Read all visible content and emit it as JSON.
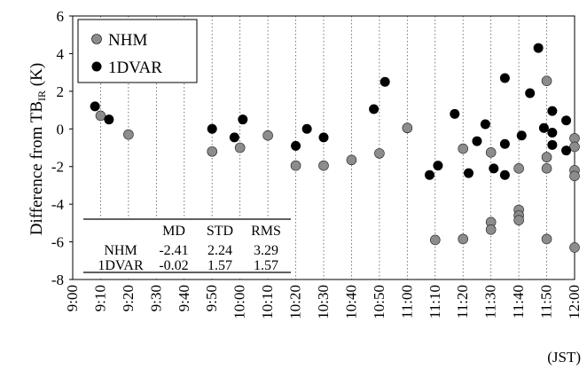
{
  "chart_data": {
    "type": "scatter",
    "xlabel": "(JST)",
    "ylabel_main": "Difference from TB",
    "ylabel_sub": "IR",
    "ylabel_unit": " (K)",
    "ylim": [
      -8,
      6
    ],
    "yticks": [
      -8,
      -6,
      -4,
      -2,
      0,
      2,
      4,
      6
    ],
    "xlim": [
      "9:00",
      "12:00"
    ],
    "xticks": [
      "9:00",
      "9:10",
      "9:20",
      "9:30",
      "9:40",
      "9:50",
      "10:00",
      "10:10",
      "10:20",
      "10:30",
      "10:40",
      "10:50",
      "11:00",
      "11:10",
      "11:20",
      "11:30",
      "11:40",
      "11:50",
      "12:00"
    ],
    "grid": "vertical dotted",
    "legend_position": "top-left",
    "colors": {
      "NHM": "#8c8c8c",
      "1DVAR": "#000000"
    },
    "series": [
      {
        "name": "NHM",
        "points": [
          [
            "9:10",
            0.7
          ],
          [
            "9:20",
            -0.3
          ],
          [
            "9:50",
            -1.2
          ],
          [
            "10:00",
            -1.0
          ],
          [
            "10:10",
            -0.35
          ],
          [
            "10:20",
            -1.95
          ],
          [
            "10:30",
            -1.95
          ],
          [
            "10:40",
            -1.65
          ],
          [
            "10:50",
            -1.3
          ],
          [
            "11:00",
            0.05
          ],
          [
            "11:10",
            -5.9
          ],
          [
            "11:20",
            -1.05
          ],
          [
            "11:20",
            -5.85
          ],
          [
            "11:30",
            -1.25
          ],
          [
            "11:30",
            -4.95
          ],
          [
            "11:30",
            -5.35
          ],
          [
            "11:40",
            -2.1
          ],
          [
            "11:40",
            -4.3
          ],
          [
            "11:40",
            -4.6
          ],
          [
            "11:40",
            -4.85
          ],
          [
            "11:50",
            2.55
          ],
          [
            "11:50",
            -1.5
          ],
          [
            "11:50",
            -2.1
          ],
          [
            "11:50",
            -5.85
          ],
          [
            "12:00",
            -0.5
          ],
          [
            "12:00",
            -0.95
          ],
          [
            "12:00",
            -2.2
          ],
          [
            "12:00",
            -2.5
          ],
          [
            "12:00",
            -6.3
          ]
        ]
      },
      {
        "name": "1DVAR",
        "points": [
          [
            "9:08",
            1.2
          ],
          [
            "9:13",
            0.5
          ],
          [
            "9:50",
            0.0
          ],
          [
            "9:58",
            -0.45
          ],
          [
            "10:01",
            0.5
          ],
          [
            "10:20",
            -0.9
          ],
          [
            "10:24",
            0.0
          ],
          [
            "10:30",
            -0.45
          ],
          [
            "10:48",
            1.05
          ],
          [
            "10:52",
            2.5
          ],
          [
            "11:08",
            -2.45
          ],
          [
            "11:11",
            -1.95
          ],
          [
            "11:17",
            0.8
          ],
          [
            "11:22",
            -2.35
          ],
          [
            "11:25",
            -0.65
          ],
          [
            "11:28",
            0.25
          ],
          [
            "11:31",
            -2.1
          ],
          [
            "11:35",
            -0.8
          ],
          [
            "11:35",
            2.7
          ],
          [
            "11:35",
            -2.45
          ],
          [
            "11:41",
            -0.35
          ],
          [
            "11:44",
            1.9
          ],
          [
            "11:47",
            4.3
          ],
          [
            "11:49",
            0.05
          ],
          [
            "11:52",
            -0.2
          ],
          [
            "11:52",
            0.95
          ],
          [
            "11:52",
            -0.85
          ],
          [
            "11:57",
            -1.15
          ],
          [
            "11:57",
            0.45
          ]
        ]
      }
    ],
    "stats_table": {
      "headers": [
        "",
        "MD",
        "STD",
        "RMS"
      ],
      "rows": [
        [
          "NHM",
          "-2.41",
          "2.24",
          "3.29"
        ],
        [
          "1DVAR",
          "-0.02",
          "1.57",
          "1.57"
        ]
      ]
    }
  }
}
